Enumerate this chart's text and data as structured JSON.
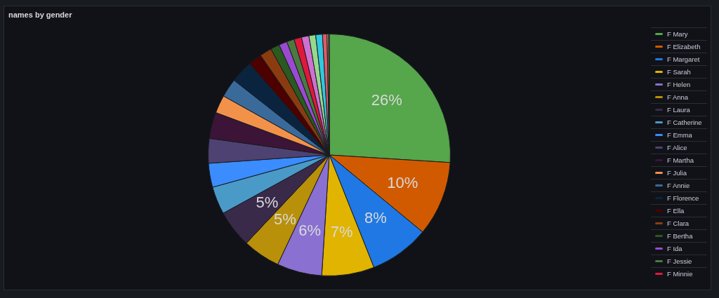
{
  "chart_data": {
    "type": "pie",
    "title": "names by gender",
    "legend": "right",
    "categories": [
      "F Mary",
      "F Elizabeth",
      "F Margaret",
      "F Sarah",
      "F Helen",
      "F Anna",
      "F Laura",
      "F Catherine",
      "F Emma",
      "F Alice",
      "F Martha",
      "F Julia",
      "F Annie",
      "F Florence",
      "F Ella",
      "F Clara",
      "F Bertha",
      "F Ida",
      "F Jessie",
      "F Minnie",
      null,
      null,
      null,
      null,
      null,
      null
    ],
    "values": [
      26,
      10,
      8,
      7,
      6,
      5,
      5,
      3.7,
      3.2,
      3.3,
      3.5,
      2.4,
      2.5,
      3.0,
      1.8,
      1.6,
      1.2,
      1.1,
      1.0,
      1.0,
      1.0,
      0.9,
      0.9,
      0.6,
      0.2,
      0.1
    ],
    "colors": [
      "#56a64b",
      "#d15a00",
      "#1f78e4",
      "#e0b400",
      "#8a70d0",
      "#b8900a",
      "#3a2a4a",
      "#4a9ac8",
      "#3a8cff",
      "#4e4272",
      "#3c1438",
      "#f2924a",
      "#3a6a9a",
      "#0a2440",
      "#4c0000",
      "#8a3c10",
      "#2a5a20",
      "#9a4ad0",
      "#4a7a40",
      "#e0183c",
      "#d070d0",
      "#96d98d",
      "#30c8e0",
      "#e05a6a",
      "#ffb357",
      "#8ab8ff"
    ],
    "value_labels": [
      "26%",
      "10%",
      "8%",
      "7%",
      "6%",
      "5%",
      "5%",
      null,
      null,
      null,
      null,
      null,
      null,
      null,
      null,
      null,
      null,
      null,
      null,
      null,
      null,
      null,
      null,
      null,
      null,
      null
    ]
  }
}
